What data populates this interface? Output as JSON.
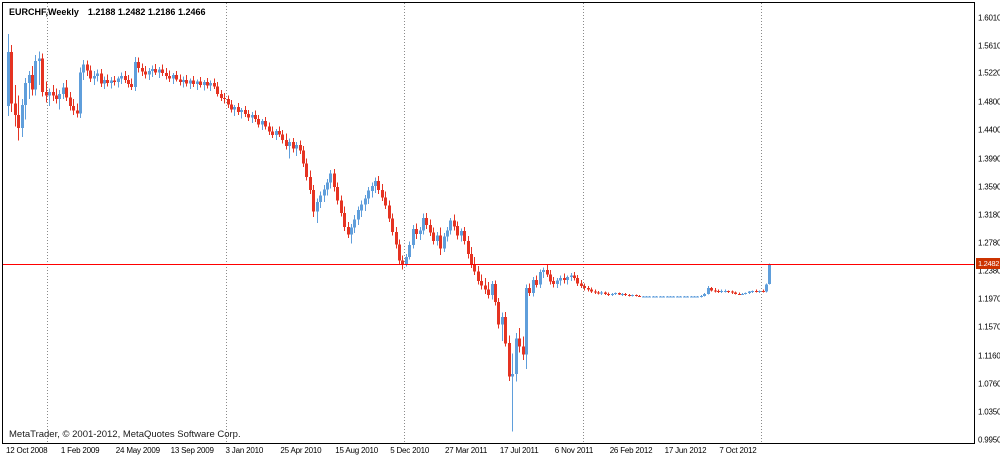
{
  "header": {
    "symbol_timeframe": "EURCHF,Weekly",
    "ohlc": "1.2188 1.2482 1.2186 1.2466"
  },
  "footer": {
    "copyright": "MetaTrader, © 2001-2012, MetaQuotes Software Corp."
  },
  "price_axis": {
    "current_line_label": "1.2482"
  },
  "colors": {
    "bull_candle": "#5f9edb",
    "bear_candle": "#e53322",
    "price_line": "#ff0000",
    "price_tag_bg": "#cc3300",
    "price_tag_text": "#ffffff",
    "grid_separator": "#8a8a8a",
    "background": "#ffffff",
    "border": "#000000"
  },
  "chart_data": {
    "type": "candlestick",
    "title": "EURCHF, Weekly",
    "symbol": "EURCHF",
    "timeframe": "Weekly",
    "grid": "vertical-year-separators-only",
    "legend_position": "none",
    "y_axis": {
      "min": 0.9907,
      "max": 1.6226,
      "ticks": [
        1.601,
        1.561,
        1.522,
        1.48,
        1.44,
        1.399,
        1.359,
        1.318,
        1.278,
        1.238,
        1.197,
        1.157,
        1.116,
        1.076,
        1.035,
        0.995
      ]
    },
    "x_axis": {
      "bars_per_tick": 16,
      "ticks": [
        {
          "index": 0,
          "label": "12 Oct 2008"
        },
        {
          "index": 16,
          "label": "1 Feb 2009"
        },
        {
          "index": 32,
          "label": "24 May 2009"
        },
        {
          "index": 48,
          "label": "13 Sep 2009"
        },
        {
          "index": 64,
          "label": "3 Jan 2010"
        },
        {
          "index": 80,
          "label": "25 Apr 2010"
        },
        {
          "index": 96,
          "label": "15 Aug 2010"
        },
        {
          "index": 112,
          "label": "5 Dec 2010"
        },
        {
          "index": 128,
          "label": "27 Mar 2011"
        },
        {
          "index": 144,
          "label": "17 Jul 2011"
        },
        {
          "index": 160,
          "label": "6 Nov 2011"
        },
        {
          "index": 176,
          "label": "26 Feb 2012"
        },
        {
          "index": 192,
          "label": "17 Jun 2012"
        },
        {
          "index": 208,
          "label": "7 Oct 2012"
        }
      ]
    },
    "year_separator_indices": [
      12,
      64,
      116,
      168,
      220
    ],
    "horizontal_line": 1.2482,
    "current_bar": {
      "open": 1.2188,
      "high": 1.2482,
      "low": 1.2186,
      "close": 1.2466
    },
    "candles": [
      [
        1.475,
        1.578,
        1.46,
        1.552
      ],
      [
        1.552,
        1.562,
        1.466,
        1.478
      ],
      [
        1.478,
        1.505,
        1.445,
        1.462
      ],
      [
        1.462,
        1.49,
        1.425,
        1.443
      ],
      [
        1.443,
        1.485,
        1.43,
        1.476
      ],
      [
        1.476,
        1.515,
        1.455,
        1.508
      ],
      [
        1.508,
        1.525,
        1.485,
        1.519
      ],
      [
        1.519,
        1.532,
        1.49,
        1.498
      ],
      [
        1.498,
        1.548,
        1.49,
        1.539
      ],
      [
        1.539,
        1.553,
        1.505,
        1.543
      ],
      [
        1.543,
        1.55,
        1.488,
        1.495
      ],
      [
        1.495,
        1.51,
        1.48,
        1.49
      ],
      [
        1.49,
        1.5,
        1.475,
        1.495
      ],
      [
        1.495,
        1.505,
        1.482,
        1.49
      ],
      [
        1.49,
        1.5,
        1.478,
        1.485
      ],
      [
        1.485,
        1.498,
        1.47,
        1.492
      ],
      [
        1.492,
        1.508,
        1.485,
        1.501
      ],
      [
        1.501,
        1.512,
        1.482,
        1.487
      ],
      [
        1.487,
        1.495,
        1.468,
        1.475
      ],
      [
        1.475,
        1.485,
        1.462,
        1.468
      ],
      [
        1.468,
        1.478,
        1.458,
        1.464
      ],
      [
        1.464,
        1.53,
        1.4576,
        1.523
      ],
      [
        1.523,
        1.541,
        1.512,
        1.534
      ],
      [
        1.534,
        1.54,
        1.518,
        1.526
      ],
      [
        1.526,
        1.533,
        1.509,
        1.514
      ],
      [
        1.514,
        1.525,
        1.505,
        1.518
      ],
      [
        1.518,
        1.527,
        1.51,
        1.521
      ],
      [
        1.521,
        1.528,
        1.502,
        1.507
      ],
      [
        1.507,
        1.517,
        1.499,
        1.512
      ],
      [
        1.512,
        1.52,
        1.503,
        1.508
      ],
      [
        1.508,
        1.516,
        1.5,
        1.511
      ],
      [
        1.511,
        1.518,
        1.504,
        1.509
      ],
      [
        1.509,
        1.517,
        1.501,
        1.514
      ],
      [
        1.514,
        1.523,
        1.506,
        1.518
      ],
      [
        1.518,
        1.525,
        1.508,
        1.512
      ],
      [
        1.512,
        1.519,
        1.501,
        1.506
      ],
      [
        1.506,
        1.514,
        1.498,
        1.502
      ],
      [
        1.502,
        1.545,
        1.496,
        1.538
      ],
      [
        1.538,
        1.544,
        1.523,
        1.529
      ],
      [
        1.529,
        1.536,
        1.518,
        1.524
      ],
      [
        1.524,
        1.532,
        1.514,
        1.52
      ],
      [
        1.52,
        1.529,
        1.512,
        1.525
      ],
      [
        1.525,
        1.533,
        1.516,
        1.528
      ],
      [
        1.528,
        1.535,
        1.519,
        1.523
      ],
      [
        1.523,
        1.531,
        1.515,
        1.527
      ],
      [
        1.527,
        1.534,
        1.518,
        1.522
      ],
      [
        1.522,
        1.529,
        1.513,
        1.518
      ],
      [
        1.518,
        1.526,
        1.509,
        1.514
      ],
      [
        1.514,
        1.522,
        1.506,
        1.519
      ],
      [
        1.519,
        1.525,
        1.51,
        1.513
      ],
      [
        1.513,
        1.52,
        1.504,
        1.509
      ],
      [
        1.509,
        1.517,
        1.501,
        1.512
      ],
      [
        1.512,
        1.519,
        1.503,
        1.507
      ],
      [
        1.507,
        1.514,
        1.499,
        1.511
      ],
      [
        1.511,
        1.518,
        1.502,
        1.506
      ],
      [
        1.506,
        1.513,
        1.498,
        1.51
      ],
      [
        1.51,
        1.516,
        1.501,
        1.505
      ],
      [
        1.505,
        1.512,
        1.497,
        1.509
      ],
      [
        1.509,
        1.515,
        1.5,
        1.504
      ],
      [
        1.504,
        1.511,
        1.496,
        1.508
      ],
      [
        1.508,
        1.514,
        1.499,
        1.503
      ],
      [
        1.503,
        1.509,
        1.488,
        1.492
      ],
      [
        1.492,
        1.498,
        1.482,
        1.486
      ],
      [
        1.486,
        1.493,
        1.478,
        1.485
      ],
      [
        1.485,
        1.49,
        1.472,
        1.477
      ],
      [
        1.477,
        1.483,
        1.465,
        1.47
      ],
      [
        1.47,
        1.476,
        1.46,
        1.473
      ],
      [
        1.473,
        1.479,
        1.462,
        1.466
      ],
      [
        1.466,
        1.472,
        1.457,
        1.469
      ],
      [
        1.469,
        1.475,
        1.459,
        1.463
      ],
      [
        1.463,
        1.469,
        1.453,
        1.458
      ],
      [
        1.458,
        1.466,
        1.45,
        1.462
      ],
      [
        1.462,
        1.468,
        1.452,
        1.456
      ],
      [
        1.456,
        1.462,
        1.444,
        1.448
      ],
      [
        1.448,
        1.456,
        1.44,
        1.453
      ],
      [
        1.453,
        1.459,
        1.441,
        1.445
      ],
      [
        1.445,
        1.451,
        1.433,
        1.438
      ],
      [
        1.438,
        1.445,
        1.429,
        1.433
      ],
      [
        1.433,
        1.442,
        1.426,
        1.439
      ],
      [
        1.439,
        1.445,
        1.43,
        1.434
      ],
      [
        1.434,
        1.44,
        1.421,
        1.426
      ],
      [
        1.426,
        1.435,
        1.412,
        1.417
      ],
      [
        1.417,
        1.428,
        1.399,
        1.423
      ],
      [
        1.423,
        1.429,
        1.408,
        1.414
      ],
      [
        1.414,
        1.423,
        1.403,
        1.419
      ],
      [
        1.419,
        1.425,
        1.406,
        1.411
      ],
      [
        1.411,
        1.417,
        1.387,
        1.392
      ],
      [
        1.392,
        1.399,
        1.368,
        1.373
      ],
      [
        1.373,
        1.382,
        1.348,
        1.354
      ],
      [
        1.354,
        1.361,
        1.315,
        1.323
      ],
      [
        1.323,
        1.342,
        1.307,
        1.337
      ],
      [
        1.337,
        1.352,
        1.328,
        1.346
      ],
      [
        1.346,
        1.361,
        1.337,
        1.355
      ],
      [
        1.355,
        1.37,
        1.346,
        1.365
      ],
      [
        1.365,
        1.383,
        1.356,
        1.378
      ],
      [
        1.378,
        1.384,
        1.352,
        1.358
      ],
      [
        1.358,
        1.365,
        1.333,
        1.339
      ],
      [
        1.339,
        1.346,
        1.316,
        1.321
      ],
      [
        1.321,
        1.33,
        1.295,
        1.301
      ],
      [
        1.301,
        1.308,
        1.285,
        1.29
      ],
      [
        1.29,
        1.305,
        1.277,
        1.3
      ],
      [
        1.3,
        1.318,
        1.292,
        1.312
      ],
      [
        1.312,
        1.33,
        1.304,
        1.325
      ],
      [
        1.325,
        1.339,
        1.315,
        1.333
      ],
      [
        1.333,
        1.347,
        1.324,
        1.342
      ],
      [
        1.342,
        1.358,
        1.334,
        1.353
      ],
      [
        1.353,
        1.365,
        1.343,
        1.36
      ],
      [
        1.36,
        1.372,
        1.35,
        1.367
      ],
      [
        1.367,
        1.374,
        1.348,
        1.354
      ],
      [
        1.354,
        1.363,
        1.338,
        1.343
      ],
      [
        1.343,
        1.352,
        1.327,
        1.332
      ],
      [
        1.332,
        1.339,
        1.308,
        1.313
      ],
      [
        1.313,
        1.32,
        1.289,
        1.294
      ],
      [
        1.294,
        1.301,
        1.27,
        1.276
      ],
      [
        1.276,
        1.283,
        1.248,
        1.253
      ],
      [
        1.253,
        1.26,
        1.24,
        1.247
      ],
      [
        1.247,
        1.262,
        1.244,
        1.258
      ],
      [
        1.258,
        1.28,
        1.254,
        1.275
      ],
      [
        1.275,
        1.304,
        1.27,
        1.298
      ],
      [
        1.298,
        1.306,
        1.284,
        1.291
      ],
      [
        1.291,
        1.301,
        1.282,
        1.296
      ],
      [
        1.296,
        1.32,
        1.29,
        1.314
      ],
      [
        1.314,
        1.321,
        1.298,
        1.304
      ],
      [
        1.304,
        1.312,
        1.288,
        1.293
      ],
      [
        1.293,
        1.3,
        1.276,
        1.281
      ],
      [
        1.281,
        1.294,
        1.274,
        1.289
      ],
      [
        1.289,
        1.3,
        1.261,
        1.27
      ],
      [
        1.27,
        1.292,
        1.265,
        1.287
      ],
      [
        1.287,
        1.301,
        1.28,
        1.296
      ],
      [
        1.296,
        1.314,
        1.29,
        1.31
      ],
      [
        1.31,
        1.319,
        1.296,
        1.302
      ],
      [
        1.302,
        1.309,
        1.283,
        1.289
      ],
      [
        1.289,
        1.299,
        1.28,
        1.295
      ],
      [
        1.295,
        1.301,
        1.276,
        1.281
      ],
      [
        1.281,
        1.288,
        1.256,
        1.262
      ],
      [
        1.262,
        1.272,
        1.242,
        1.248
      ],
      [
        1.248,
        1.258,
        1.232,
        1.237
      ],
      [
        1.237,
        1.245,
        1.218,
        1.223
      ],
      [
        1.223,
        1.233,
        1.211,
        1.217
      ],
      [
        1.217,
        1.228,
        1.205,
        1.211
      ],
      [
        1.211,
        1.222,
        1.198,
        1.203
      ],
      [
        1.203,
        1.223,
        1.197,
        1.219
      ],
      [
        1.219,
        1.224,
        1.188,
        1.193
      ],
      [
        1.193,
        1.199,
        1.155,
        1.161
      ],
      [
        1.161,
        1.178,
        1.137,
        1.172
      ],
      [
        1.172,
        1.179,
        1.129,
        1.134
      ],
      [
        1.134,
        1.145,
        1.08,
        1.086
      ],
      [
        1.086,
        1.119,
        1.007,
        1.09
      ],
      [
        1.09,
        1.149,
        1.079,
        1.141
      ],
      [
        1.141,
        1.156,
        1.121,
        1.129
      ],
      [
        1.129,
        1.144,
        1.11,
        1.118
      ],
      [
        1.118,
        1.218,
        1.097,
        1.213
      ],
      [
        1.213,
        1.22,
        1.202,
        1.206
      ],
      [
        1.206,
        1.229,
        1.201,
        1.225
      ],
      [
        1.225,
        1.231,
        1.214,
        1.218
      ],
      [
        1.218,
        1.24,
        1.213,
        1.236
      ],
      [
        1.236,
        1.243,
        1.228,
        1.239
      ],
      [
        1.239,
        1.247,
        1.229,
        1.233
      ],
      [
        1.233,
        1.239,
        1.218,
        1.223
      ],
      [
        1.223,
        1.229,
        1.214,
        1.219
      ],
      [
        1.219,
        1.228,
        1.213,
        1.224
      ],
      [
        1.224,
        1.231,
        1.217,
        1.228
      ],
      [
        1.228,
        1.234,
        1.22,
        1.225
      ],
      [
        1.225,
        1.231,
        1.218,
        1.229
      ],
      [
        1.229,
        1.235,
        1.223,
        1.231
      ],
      [
        1.231,
        1.236,
        1.224,
        1.228
      ],
      [
        1.228,
        1.232,
        1.216,
        1.22
      ],
      [
        1.22,
        1.225,
        1.213,
        1.216
      ],
      [
        1.216,
        1.22,
        1.21,
        1.213
      ],
      [
        1.213,
        1.216,
        1.208,
        1.211
      ],
      [
        1.211,
        1.214,
        1.206,
        1.208
      ],
      [
        1.208,
        1.211,
        1.205,
        1.207
      ],
      [
        1.207,
        1.209,
        1.204,
        1.206
      ],
      [
        1.206,
        1.209,
        1.203,
        1.207
      ],
      [
        1.207,
        1.208,
        1.203,
        1.205
      ],
      [
        1.205,
        1.207,
        1.202,
        1.204
      ],
      [
        1.204,
        1.206,
        1.202,
        1.205
      ],
      [
        1.205,
        1.207,
        1.203,
        1.206
      ],
      [
        1.206,
        1.207,
        1.203,
        1.204
      ],
      [
        1.204,
        1.206,
        1.202,
        1.205
      ],
      [
        1.205,
        1.206,
        1.202,
        1.203
      ],
      [
        1.203,
        1.205,
        1.201,
        1.202
      ],
      [
        1.202,
        1.204,
        1.201,
        1.203
      ],
      [
        1.203,
        1.204,
        1.201,
        1.202
      ],
      [
        1.202,
        1.203,
        1.2005,
        1.201
      ],
      [
        1.201,
        1.202,
        1.2,
        1.201
      ],
      [
        1.201,
        1.202,
        1.2,
        1.201
      ],
      [
        1.201,
        1.202,
        1.2,
        1.201
      ],
      [
        1.201,
        1.202,
        1.2,
        1.201
      ],
      [
        1.201,
        1.202,
        1.2,
        1.201
      ],
      [
        1.201,
        1.202,
        1.2,
        1.201
      ],
      [
        1.201,
        1.202,
        1.2,
        1.201
      ],
      [
        1.201,
        1.202,
        1.2,
        1.201
      ],
      [
        1.201,
        1.202,
        1.2,
        1.201
      ],
      [
        1.201,
        1.202,
        1.2,
        1.201
      ],
      [
        1.201,
        1.202,
        1.2,
        1.201
      ],
      [
        1.201,
        1.202,
        1.2,
        1.201
      ],
      [
        1.201,
        1.202,
        1.2,
        1.201
      ],
      [
        1.201,
        1.202,
        1.2,
        1.201
      ],
      [
        1.201,
        1.202,
        1.2,
        1.201
      ],
      [
        1.201,
        1.202,
        1.2,
        1.201
      ],
      [
        1.201,
        1.202,
        1.2,
        1.201
      ],
      [
        1.201,
        1.203,
        1.2,
        1.202
      ],
      [
        1.202,
        1.206,
        1.201,
        1.205
      ],
      [
        1.205,
        1.216,
        1.204,
        1.213
      ],
      [
        1.213,
        1.215,
        1.208,
        1.21
      ],
      [
        1.21,
        1.213,
        1.207,
        1.209
      ],
      [
        1.209,
        1.211,
        1.206,
        1.208
      ],
      [
        1.208,
        1.211,
        1.206,
        1.209
      ],
      [
        1.209,
        1.211,
        1.207,
        1.209
      ],
      [
        1.209,
        1.21,
        1.206,
        1.208
      ],
      [
        1.208,
        1.21,
        1.205,
        1.207
      ],
      [
        1.207,
        1.208,
        1.204,
        1.205
      ],
      [
        1.205,
        1.207,
        1.203,
        1.204
      ],
      [
        1.204,
        1.206,
        1.203,
        1.205
      ],
      [
        1.205,
        1.207,
        1.204,
        1.206
      ],
      [
        1.206,
        1.209,
        1.205,
        1.208
      ],
      [
        1.208,
        1.21,
        1.206,
        1.209
      ],
      [
        1.209,
        1.211,
        1.207,
        1.208
      ],
      [
        1.208,
        1.21,
        1.206,
        1.209
      ],
      [
        1.209,
        1.211,
        1.207,
        1.208
      ],
      [
        1.208,
        1.22,
        1.207,
        1.218
      ],
      [
        1.2188,
        1.2482,
        1.2186,
        1.2466
      ]
    ]
  }
}
